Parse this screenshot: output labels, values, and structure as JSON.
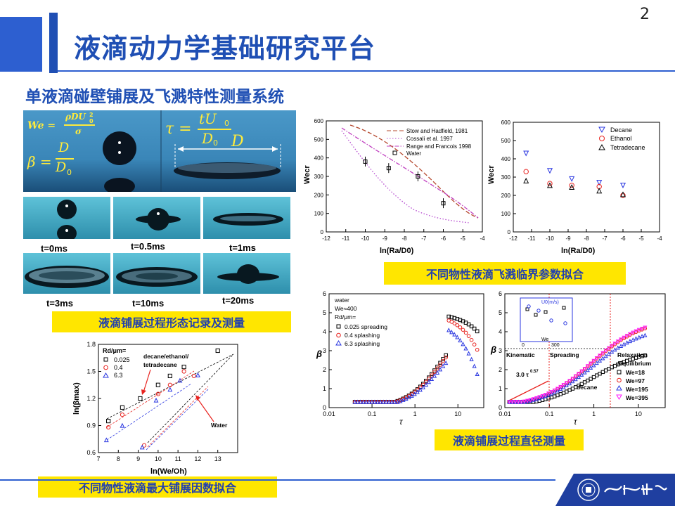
{
  "page_number": "2",
  "title": "液滴动力学基础研究平台",
  "subtitle": "单液滴碰壁铺展及飞溅特性测量系统",
  "formulas": {
    "we_lhs": "We =",
    "we_num": "ρDU",
    "we_den": "σ",
    "beta_lhs": "β =",
    "beta_num": "D",
    "beta_den": "D",
    "tau_lhs": "τ =",
    "tau_num": "tU",
    "tau_den": "D",
    "d_label": "D"
  },
  "frames": [
    "t=0ms",
    "t=0.5ms",
    "t=1ms",
    "t=3ms",
    "t=10ms",
    "t=20ms"
  ],
  "captions": {
    "morphology": "液滴铺展过程形态记录及测量",
    "splash": "不同物性液滴飞溅临界参数拟合",
    "betamax": "不同物性液滴最大铺展因数拟合",
    "diameter": "液滴铺展过程直径测量"
  },
  "colors": {
    "title": "#1f4fb4",
    "caption_bg": "#ffe600",
    "caption_text": "#1f3fb0",
    "red": "#e8231f",
    "blue": "#2835e0",
    "magenta": "#ff18ff"
  },
  "chart_data": [
    {
      "type": "line",
      "xlabel": "ln(Ra/D0)",
      "ylabel": "Wecr",
      "xlim": [
        -12,
        -4
      ],
      "ylim": [
        0,
        600
      ],
      "xticks": [
        "-12",
        "-11",
        "-10",
        "-9",
        "-8",
        "-7",
        "-6",
        "-5",
        "-4"
      ],
      "yticks": [
        "0",
        "100",
        "200",
        "300",
        "400",
        "500",
        "600"
      ],
      "legend": [
        "Stow and Hadfield, 1981",
        "Cossali et al. 1997",
        "Range and Francois 1998",
        "Water"
      ],
      "series": [
        {
          "name": "Water",
          "x": [
            -10,
            -8.8,
            -7.3,
            -6
          ],
          "y": [
            380,
            345,
            300,
            155
          ]
        }
      ]
    },
    {
      "type": "scatter",
      "xlabel": "ln(Ra/D0)",
      "ylabel": "Wecr",
      "xlim": [
        -12,
        -4
      ],
      "ylim": [
        0,
        600
      ],
      "xticks": [
        "-12",
        "-11",
        "-10",
        "-9",
        "-8",
        "-7",
        "-6",
        "-5",
        "-4"
      ],
      "yticks": [
        "0",
        "100",
        "200",
        "300",
        "400",
        "500",
        "600"
      ],
      "series": [
        {
          "name": "Decane",
          "x": [
            -11.3,
            -10,
            -8.8,
            -7.3,
            -6
          ],
          "y": [
            430,
            335,
            290,
            270,
            255
          ]
        },
        {
          "name": "Ethanol",
          "x": [
            -11.3,
            -10,
            -8.8,
            -7.3,
            -6
          ],
          "y": [
            330,
            265,
            255,
            248,
            200
          ]
        },
        {
          "name": "Tetradecane",
          "x": [
            -11.3,
            -10,
            -8.8,
            -7.3,
            -6
          ],
          "y": [
            280,
            255,
            245,
            225,
            205
          ]
        }
      ]
    },
    {
      "type": "scatter",
      "xlabel": "ln(We/Oh)",
      "ylabel": "ln(βmax)",
      "xlim": [
        7,
        14
      ],
      "ylim": [
        0.6,
        1.8
      ],
      "xticks": [
        "7",
        "8",
        "9",
        "10",
        "11",
        "12",
        "13"
      ],
      "yticks": [
        "0.6",
        "0.9",
        "1.2",
        "1.5",
        "1.8"
      ],
      "legend_title": "Rd/μm=",
      "annotations": [
        "decane/ethanol/",
        "tetradecane",
        "Water"
      ],
      "series": [
        {
          "name": "0.025",
          "x": [
            7.5,
            8.2,
            9.1,
            10,
            10.6,
            11.3,
            13
          ],
          "y": [
            0.95,
            1.1,
            1.2,
            1.35,
            1.45,
            1.55,
            1.73
          ]
        },
        {
          "name": "0.4",
          "x": [
            7.5,
            8.2,
            9.3,
            10,
            10.6,
            11.3,
            11.8
          ],
          "y": [
            0.88,
            1.02,
            0.68,
            1.25,
            1.35,
            1.5,
            1.45
          ]
        },
        {
          "name": "6.3",
          "x": [
            7.4,
            8.2,
            9.2,
            9.9,
            10.6,
            11.1,
            12
          ],
          "y": [
            0.74,
            0.9,
            0.66,
            1.18,
            1.3,
            1.4,
            1.46
          ]
        }
      ]
    },
    {
      "type": "scatter",
      "xlabel": "τ",
      "ylabel": "β",
      "xscale": "log",
      "xlim": [
        0.01,
        40
      ],
      "ylim": [
        0,
        6
      ],
      "xticks": [
        "0.01",
        "0.1",
        "1",
        "10"
      ],
      "yticks": [
        "0",
        "1",
        "2",
        "3",
        "4",
        "5",
        "6"
      ],
      "info": [
        "water",
        "We≈400",
        "Rd/μm="
      ],
      "series": [
        {
          "name": "0.025 spreading",
          "peak": 4.8
        },
        {
          "name": "0.4 splashing",
          "peak": 4.6
        },
        {
          "name": "6.3 splashing",
          "peak": 4.1
        }
      ]
    },
    {
      "type": "scatter",
      "xlabel": "τ",
      "ylabel": "β",
      "xscale": "log",
      "xlim": [
        0.01,
        40
      ],
      "ylim": [
        0,
        6
      ],
      "xticks": [
        "0.01",
        "0.1",
        "1",
        "10"
      ],
      "yticks": [
        "0",
        "1",
        "2",
        "3",
        "4",
        "5",
        "6"
      ],
      "annotations": [
        "Kinematic",
        "Spreading",
        "Relaxation",
        "/equilibrium",
        "3.0 τ",
        "0.57",
        "decane"
      ],
      "inset": {
        "xlabel": "We",
        "ylabel": "U0(m/s)",
        "ticks": [
          "0",
          "300"
        ]
      },
      "series": [
        {
          "name": "We=18",
          "plateau": 3.1
        },
        {
          "name": "We=97",
          "plateau": 4.7
        },
        {
          "name": "We=195",
          "plateau": 4.3
        },
        {
          "name": "We=395",
          "plateau": 4.75
        }
      ]
    }
  ]
}
